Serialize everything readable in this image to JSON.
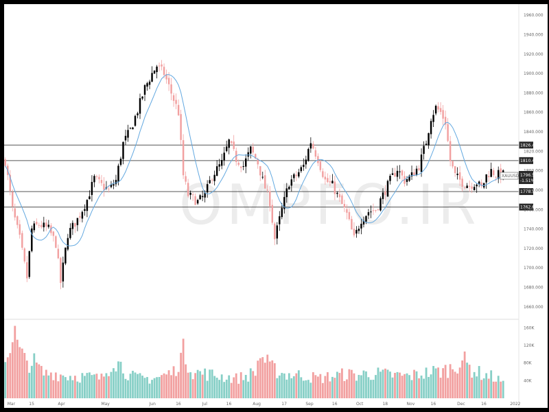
{
  "watermark": "OMPFO.IR",
  "colors": {
    "up": "#000000",
    "down": "#f2a0a0",
    "ma": "#62a8e0",
    "vol_up": "#86cfc6",
    "vol_down": "#f2a0a0",
    "level": "#555555"
  },
  "chart_data": {
    "type": "candlestick",
    "title": "",
    "symbol_label": "XAUUSD",
    "price_tag": "1796.550",
    "change_tag": "-1.51%",
    "y_ticks": [
      "1960.000",
      "1940.000",
      "1920.000",
      "1900.000",
      "1880.000",
      "1860.000",
      "1840.000",
      "1820.000",
      "1800.000",
      "1780.000",
      "1760.000",
      "1740.000",
      "1720.000",
      "1700.000",
      "1680.000",
      "1660.000"
    ],
    "ylim": [
      1650,
      1970
    ],
    "volume_ticks": [
      "160K",
      "120K",
      "80K",
      "40K"
    ],
    "volume_lim": [
      0,
      170000
    ],
    "x_ticks": [
      {
        "label": "Mar",
        "i": 2
      },
      {
        "label": "15",
        "i": 11
      },
      {
        "label": "Apr",
        "i": 23
      },
      {
        "label": "May",
        "i": 41
      },
      {
        "label": "Jun",
        "i": 61
      },
      {
        "label": "16",
        "i": 72
      },
      {
        "label": "Jul",
        "i": 83
      },
      {
        "label": "16",
        "i": 93
      },
      {
        "label": "Aug",
        "i": 104
      },
      {
        "label": "17",
        "i": 116
      },
      {
        "label": "Sep",
        "i": 126
      },
      {
        "label": "16",
        "i": 137
      },
      {
        "label": "Oct",
        "i": 147
      },
      {
        "label": "18",
        "i": 158
      },
      {
        "label": "Nov",
        "i": 168
      },
      {
        "label": "16",
        "i": 178
      },
      {
        "label": "Dec",
        "i": 189
      },
      {
        "label": "16",
        "i": 199
      },
      {
        "label": "2022",
        "i": 211
      }
    ],
    "x_count": 214,
    "levels": [
      {
        "value": 1826.4,
        "label": "1826.400"
      },
      {
        "value": 1810.46,
        "label": "1810.460"
      },
      {
        "value": 1778.58,
        "label": "1778.580"
      },
      {
        "value": 1762.64,
        "label": "1762.640"
      }
    ],
    "anchors": [
      [
        0,
        1810
      ],
      [
        3,
        1760
      ],
      [
        6,
        1730
      ],
      [
        9,
        1690
      ],
      [
        11,
        1740
      ],
      [
        14,
        1745
      ],
      [
        18,
        1740
      ],
      [
        21,
        1725
      ],
      [
        23,
        1685
      ],
      [
        26,
        1735
      ],
      [
        30,
        1750
      ],
      [
        34,
        1770
      ],
      [
        37,
        1792
      ],
      [
        40,
        1785
      ],
      [
        43,
        1780
      ],
      [
        46,
        1790
      ],
      [
        49,
        1828
      ],
      [
        52,
        1842
      ],
      [
        55,
        1862
      ],
      [
        58,
        1885
      ],
      [
        61,
        1900
      ],
      [
        63,
        1908
      ],
      [
        66,
        1900
      ],
      [
        69,
        1880
      ],
      [
        72,
        1860
      ],
      [
        74,
        1795
      ],
      [
        76,
        1775
      ],
      [
        80,
        1768
      ],
      [
        83,
        1775
      ],
      [
        86,
        1795
      ],
      [
        90,
        1808
      ],
      [
        93,
        1830
      ],
      [
        96,
        1812
      ],
      [
        99,
        1805
      ],
      [
        102,
        1822
      ],
      [
        105,
        1808
      ],
      [
        107,
        1790
      ],
      [
        110,
        1768
      ],
      [
        112,
        1730
      ],
      [
        115,
        1760
      ],
      [
        118,
        1788
      ],
      [
        121,
        1795
      ],
      [
        124,
        1805
      ],
      [
        127,
        1830
      ],
      [
        130,
        1812
      ],
      [
        133,
        1790
      ],
      [
        136,
        1785
      ],
      [
        139,
        1770
      ],
      [
        142,
        1755
      ],
      [
        145,
        1730
      ],
      [
        148,
        1750
      ],
      [
        151,
        1758
      ],
      [
        154,
        1760
      ],
      [
        157,
        1775
      ],
      [
        160,
        1790
      ],
      [
        163,
        1802
      ],
      [
        166,
        1790
      ],
      [
        169,
        1795
      ],
      [
        172,
        1805
      ],
      [
        175,
        1830
      ],
      [
        177,
        1855
      ],
      [
        179,
        1865
      ],
      [
        181,
        1860
      ],
      [
        183,
        1850
      ],
      [
        185,
        1810
      ],
      [
        187,
        1795
      ],
      [
        190,
        1788
      ],
      [
        193,
        1785
      ],
      [
        196,
        1788
      ],
      [
        198,
        1782
      ],
      [
        200,
        1795
      ],
      [
        202,
        1800
      ],
      [
        204,
        1796
      ]
    ],
    "volume_anchors": [
      [
        0,
        85000
      ],
      [
        2,
        130000
      ],
      [
        4,
        140000
      ],
      [
        6,
        105000
      ],
      [
        8,
        85000
      ],
      [
        12,
        80000
      ],
      [
        16,
        55000
      ],
      [
        20,
        58000
      ],
      [
        24,
        52000
      ],
      [
        30,
        50000
      ],
      [
        36,
        48000
      ],
      [
        40,
        45000
      ],
      [
        43,
        70000
      ],
      [
        45,
        90000
      ],
      [
        48,
        75000
      ],
      [
        52,
        50000
      ],
      [
        56,
        45000
      ],
      [
        60,
        45000
      ],
      [
        64,
        48000
      ],
      [
        70,
        60000
      ],
      [
        74,
        105000
      ],
      [
        78,
        60000
      ],
      [
        84,
        55000
      ],
      [
        90,
        50000
      ],
      [
        96,
        45000
      ],
      [
        100,
        50000
      ],
      [
        104,
        60000
      ],
      [
        106,
        100000
      ],
      [
        110,
        70000
      ],
      [
        116,
        55000
      ],
      [
        124,
        52000
      ],
      [
        130,
        45000
      ],
      [
        136,
        50000
      ],
      [
        142,
        55000
      ],
      [
        146,
        52000
      ],
      [
        150,
        56000
      ],
      [
        156,
        55000
      ],
      [
        162,
        52000
      ],
      [
        168,
        50000
      ],
      [
        172,
        55000
      ],
      [
        178,
        60000
      ],
      [
        182,
        62000
      ],
      [
        186,
        70000
      ],
      [
        190,
        88000
      ],
      [
        194,
        65000
      ],
      [
        198,
        55000
      ],
      [
        202,
        50000
      ],
      [
        206,
        40000
      ],
      [
        209,
        12000
      ]
    ]
  }
}
